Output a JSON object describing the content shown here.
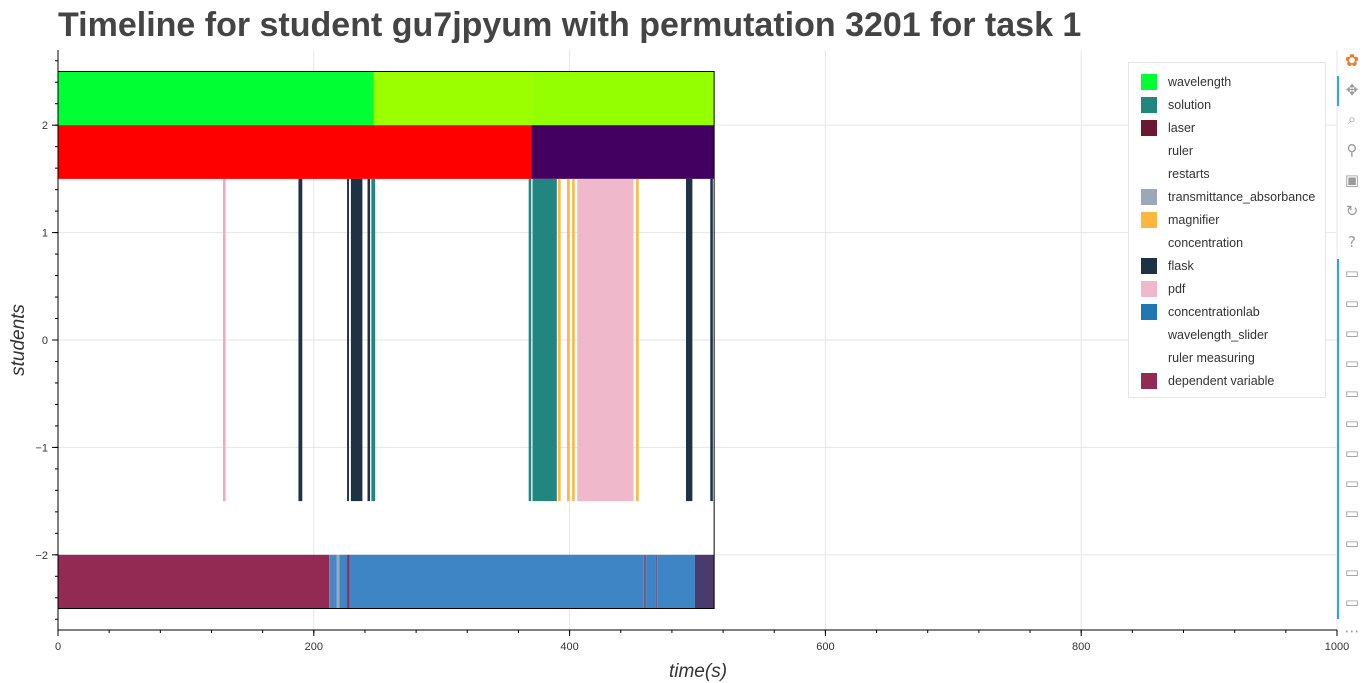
{
  "chart_data": {
    "type": "timeline",
    "title": "Timeline for student gu7jpyum with permutation 3201 for task 1",
    "xlabel": "time(s)",
    "ylabel": "students",
    "xlim": [
      0,
      1000
    ],
    "ylim": [
      -2.7,
      2.7
    ],
    "x_ticks": [
      0,
      200,
      400,
      600,
      800,
      1000
    ],
    "x_tick_labels": [
      "0",
      "200",
      "400",
      "600",
      "800",
      "1000"
    ],
    "y_ticks": [
      -2,
      -1,
      0,
      1,
      2
    ],
    "y_tick_labels": [
      "−2",
      "−1",
      "0",
      "1",
      "2"
    ],
    "grid": true,
    "legend_position": "top-right",
    "legend": [
      {
        "label": "wavelength",
        "color": "#00ff33"
      },
      {
        "label": "solution",
        "color": "#21867f"
      },
      {
        "label": "laser",
        "color": "#6b1932"
      },
      {
        "label": "ruler",
        "color": ""
      },
      {
        "label": "restarts",
        "color": ""
      },
      {
        "label": "transmittance_absorbance",
        "color": "#9aa8ba"
      },
      {
        "label": "magnifier",
        "color": "#fdb73e"
      },
      {
        "label": "concentration",
        "color": ""
      },
      {
        "label": "flask",
        "color": "#1e3246"
      },
      {
        "label": "pdf",
        "color": "#efb8cb"
      },
      {
        "label": "concentrationlab",
        "color": "#1f77b4"
      },
      {
        "label": "wavelength_slider",
        "color": ""
      },
      {
        "label": "ruler measuring",
        "color": ""
      },
      {
        "label": "dependent variable",
        "color": "#932a54"
      }
    ],
    "rows": [
      {
        "y_top": 2.5,
        "y_bottom": 2.0,
        "segments": [
          {
            "start": 0,
            "end": 247,
            "color": "#00ff33"
          },
          {
            "start": 247,
            "end": 370,
            "color": "#9cff00"
          },
          {
            "start": 370,
            "end": 513,
            "color": "#94ff00"
          }
        ]
      },
      {
        "y_top": 2.0,
        "y_bottom": 1.5,
        "segments": [
          {
            "start": 0,
            "end": 370,
            "color": "#ff0000"
          },
          {
            "start": 370,
            "end": 513,
            "color": "#440061"
          }
        ]
      },
      {
        "y_top": 1.5,
        "y_bottom": -1.5,
        "segments": [
          {
            "start": 129,
            "end": 131,
            "color": "#f4a5c0"
          },
          {
            "start": 188,
            "end": 191,
            "color": "#1e3246"
          },
          {
            "start": 226,
            "end": 227.5,
            "color": "#1e3246"
          },
          {
            "start": 229,
            "end": 238,
            "color": "#1e3246"
          },
          {
            "start": 242,
            "end": 244,
            "color": "#1e3246"
          },
          {
            "start": 245,
            "end": 248,
            "color": "#21867f"
          },
          {
            "start": 368,
            "end": 370,
            "color": "#21867f"
          },
          {
            "start": 371,
            "end": 390,
            "color": "#21867f"
          },
          {
            "start": 391,
            "end": 393,
            "color": "#fdb73e"
          },
          {
            "start": 398,
            "end": 400,
            "color": "#fdb73e"
          },
          {
            "start": 402,
            "end": 404,
            "color": "#fdb73e"
          },
          {
            "start": 406,
            "end": 450,
            "color": "#efb8cb"
          },
          {
            "start": 452,
            "end": 454,
            "color": "#fdb73e"
          },
          {
            "start": 491,
            "end": 496,
            "color": "#1e3246"
          },
          {
            "start": 510,
            "end": 512,
            "color": "#1e3246"
          }
        ]
      },
      {
        "y_top": -2.0,
        "y_bottom": -2.5,
        "segments": [
          {
            "start": 0,
            "end": 212,
            "color": "#932a54"
          },
          {
            "start": 212,
            "end": 218,
            "color": "#4a87c2"
          },
          {
            "start": 218,
            "end": 220,
            "color": "#9aa8ba"
          },
          {
            "start": 220,
            "end": 226,
            "color": "#3e85c6"
          },
          {
            "start": 226,
            "end": 228,
            "color": "#932a54"
          },
          {
            "start": 228,
            "end": 458,
            "color": "#3e85c6"
          },
          {
            "start": 458,
            "end": 460,
            "color": "#6b5d8c"
          },
          {
            "start": 460,
            "end": 467,
            "color": "#3e85c6"
          },
          {
            "start": 467,
            "end": 468.5,
            "color": "#6b5d8c"
          },
          {
            "start": 468.5,
            "end": 498,
            "color": "#3e85c6"
          },
          {
            "start": 498,
            "end": 513,
            "color": "#4a3a6e"
          }
        ]
      }
    ]
  },
  "toolbar": {
    "tools": [
      {
        "name": "bokeh-logo-icon",
        "glyph": "✿"
      },
      {
        "name": "pan-tool-icon",
        "glyph": "✥"
      },
      {
        "name": "box-zoom-tool-icon",
        "glyph": "⌕"
      },
      {
        "name": "wheel-zoom-tool-icon",
        "glyph": "⚲"
      },
      {
        "name": "save-tool-icon",
        "glyph": "▣"
      },
      {
        "name": "reset-tool-icon",
        "glyph": "↻"
      },
      {
        "name": "help-tool-icon",
        "glyph": "?"
      },
      {
        "name": "hover-tool-icon",
        "glyph": "▭"
      },
      {
        "name": "hover-tool-icon",
        "glyph": "▭"
      },
      {
        "name": "hover-tool-icon",
        "glyph": "▭"
      },
      {
        "name": "hover-tool-icon",
        "glyph": "▭"
      },
      {
        "name": "hover-tool-icon",
        "glyph": "▭"
      },
      {
        "name": "hover-tool-icon",
        "glyph": "▭"
      },
      {
        "name": "hover-tool-icon",
        "glyph": "▭"
      },
      {
        "name": "hover-tool-icon",
        "glyph": "▭"
      },
      {
        "name": "hover-tool-icon",
        "glyph": "▭"
      },
      {
        "name": "hover-tool-icon",
        "glyph": "▭"
      },
      {
        "name": "hover-tool-icon",
        "glyph": "▭"
      },
      {
        "name": "hover-tool-icon",
        "glyph": "▭"
      },
      {
        "name": "more-tools-icon",
        "glyph": "⋯"
      }
    ]
  }
}
